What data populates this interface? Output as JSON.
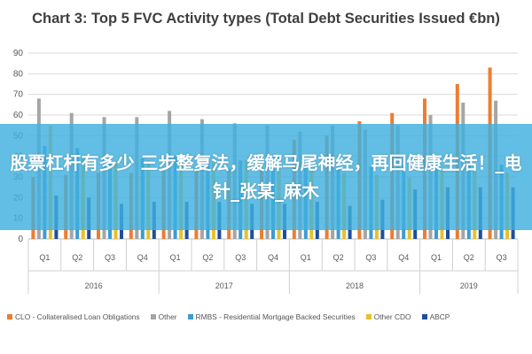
{
  "chart_data": {
    "type": "bar",
    "title": "Chart 3: Top 5 FVC Activity types (Total Debt Securities Issued €bn)",
    "xlabel": "",
    "ylabel": "",
    "ylim": [
      0,
      90
    ],
    "yticks": [
      0,
      10,
      20,
      30,
      40,
      50,
      60,
      70,
      80,
      90
    ],
    "grid": true,
    "legend_position": "bottom",
    "categories": [
      "Q1",
      "Q2",
      "Q3",
      "Q4",
      "Q1",
      "Q2",
      "Q3",
      "Q4",
      "Q1",
      "Q2",
      "Q3",
      "Q4",
      "Q1",
      "Q2",
      "Q3"
    ],
    "groups": [
      {
        "label": "2016",
        "count": 4
      },
      {
        "label": "2017",
        "count": 4
      },
      {
        "label": "2018",
        "count": 4
      },
      {
        "label": "2019",
        "count": 3
      }
    ],
    "series": [
      {
        "name": "CLO - Collateralised Loan Obligations",
        "color": "#ed7d31",
        "values": [
          30,
          31,
          32,
          32,
          33,
          33,
          34,
          34,
          48,
          50,
          57,
          61,
          68,
          75,
          83
        ]
      },
      {
        "name": "Other",
        "color": "#a5a5a5",
        "values": [
          68,
          61,
          59,
          59,
          62,
          58,
          56,
          55,
          52,
          55,
          53,
          55,
          60,
          66,
          67
        ]
      },
      {
        "name": "RMBS - Residential Mortgage Backed Securities",
        "color": "#3e9bd2",
        "values": [
          45,
          44,
          40,
          39,
          40,
          38,
          38,
          36,
          36,
          35,
          35,
          36,
          36,
          37,
          36
        ]
      },
      {
        "name": "Other CDO",
        "color": "#e8c02a",
        "values": [
          55,
          40,
          37,
          38,
          37,
          37,
          38,
          37,
          33,
          32,
          31,
          30,
          33,
          33,
          32
        ]
      },
      {
        "name": "ABCP",
        "color": "#1f4e9c",
        "values": [
          21,
          20,
          17,
          18,
          18,
          18,
          17,
          17,
          18,
          16,
          19,
          24,
          25,
          25,
          25
        ]
      }
    ]
  },
  "banner": {
    "text": "股票杠杆有多少 三步整复法，缓解马尾神经，再回健康生活！_电针_张某_麻木"
  }
}
